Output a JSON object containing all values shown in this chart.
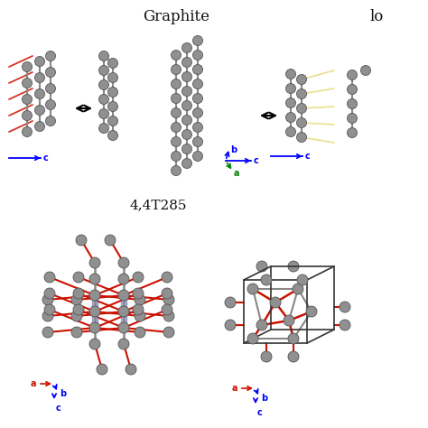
{
  "title_left": "Graphite",
  "title_right": "lo",
  "subtitle_bottom": "4,4T285",
  "background_color": "#ffffff",
  "fig_width": 4.74,
  "fig_height": 4.74,
  "dpi": 100,
  "atom_color": "#909090",
  "atom_edge_color": "#555555",
  "red_bond_color": "#cc1100",
  "blue_fill_color": "#7777bb",
  "yellow_bond_color": "#e8dc80",
  "bond_gray": "#888888",
  "text_color": "#111111",
  "axis_a_color": "#cc1100",
  "axis_b_color": "#0000bb",
  "axis_c_color": "#0000bb",
  "green_color": "#00aa00"
}
